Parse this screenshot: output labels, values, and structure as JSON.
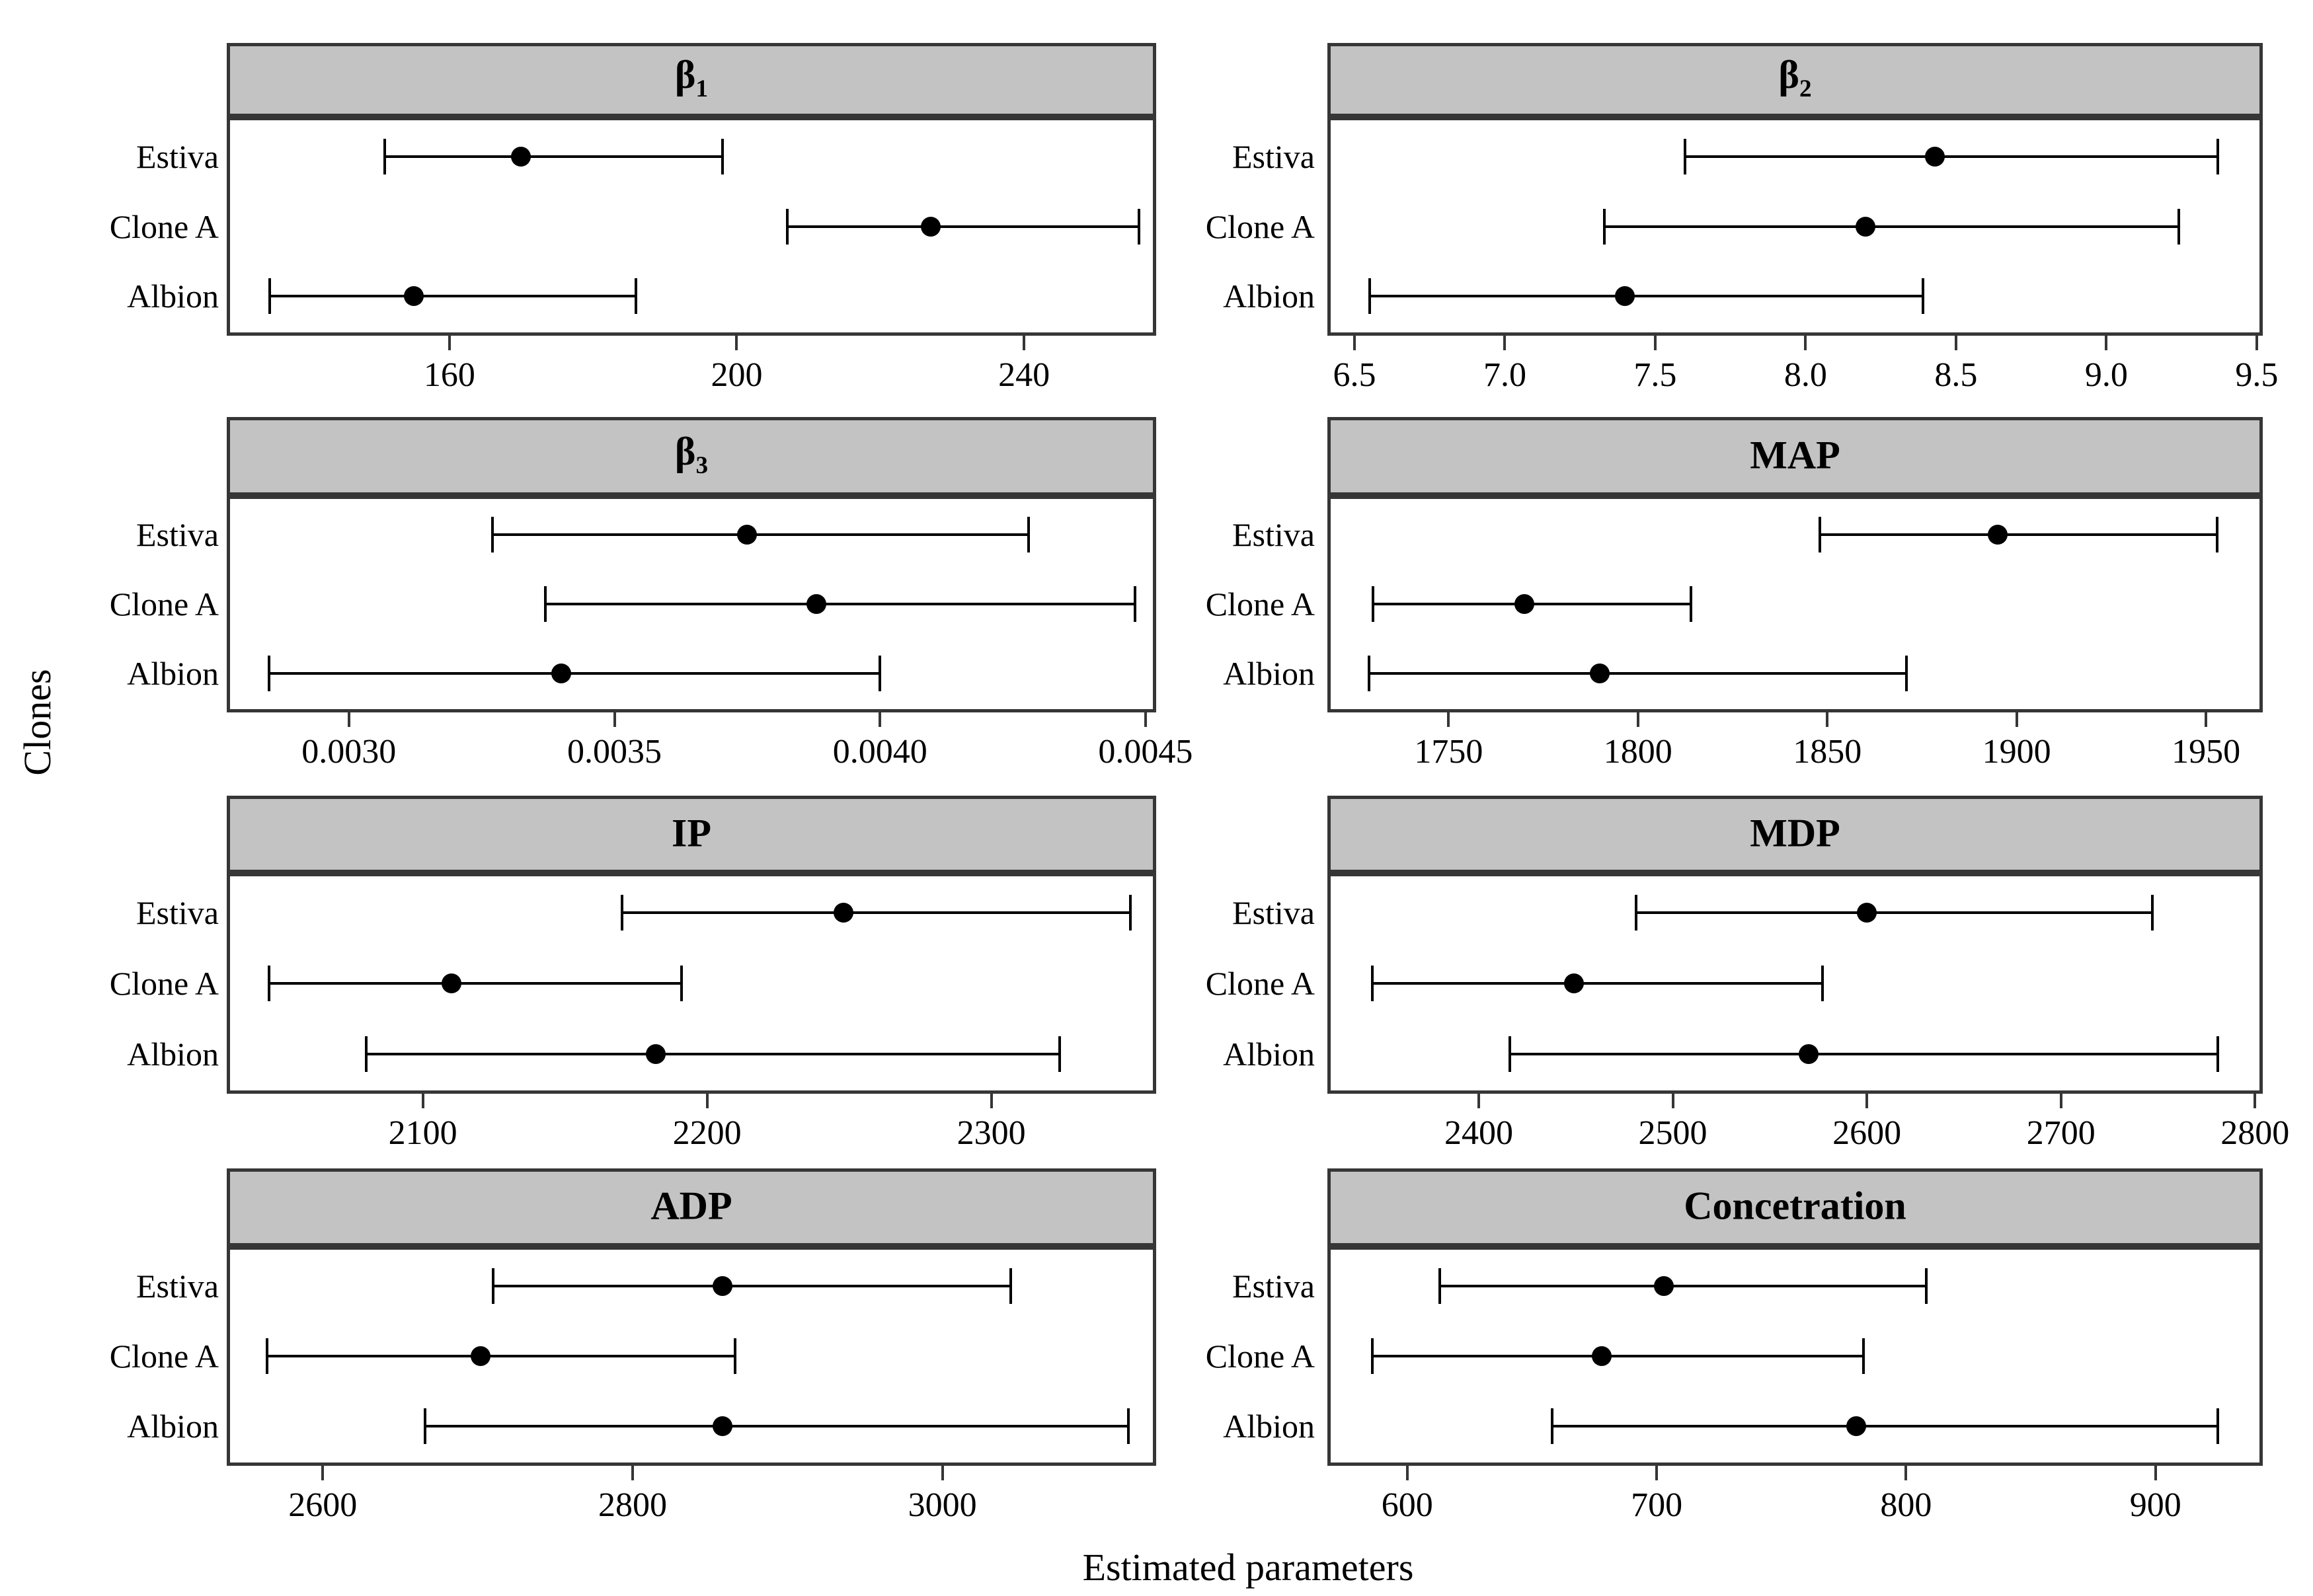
{
  "figure": {
    "ylab": "Clones",
    "xlab": "Estimated parameters"
  },
  "colors": {
    "strip_bg": "#c3c3c3",
    "border": "#363636",
    "data": "#000000",
    "background": "#ffffff",
    "text": "#000000"
  },
  "chart_data": {
    "type": "scatter",
    "subtype": "trellis-dotplot-with-error-bars",
    "layout": {
      "grid_dims": "4 rows x 2 cols",
      "grid": false,
      "legend": false,
      "strip_position": "top"
    },
    "rows_top_to_bottom": [
      "Estiva",
      "Clone A",
      "Albion"
    ],
    "panels": [
      {
        "title": "β",
        "title_sub": "1",
        "xlim": [
          129,
          258.4
        ],
        "ticks": [
          {
            "v": 160,
            "label": "160"
          },
          {
            "v": 200,
            "label": "200"
          },
          {
            "v": 240,
            "label": "240"
          }
        ],
        "series": [
          {
            "clone": "Estiva",
            "est": 170,
            "lo": 151,
            "hi": 198
          },
          {
            "clone": "Clone A",
            "est": 227,
            "lo": 207,
            "hi": 256
          },
          {
            "clone": "Albion",
            "est": 155,
            "lo": 135,
            "hi": 186
          }
        ]
      },
      {
        "title": "β",
        "title_sub": "2",
        "xlim": [
          6.41,
          9.52
        ],
        "ticks": [
          {
            "v": 6.5,
            "label": "6.5"
          },
          {
            "v": 7.0,
            "label": "7.0"
          },
          {
            "v": 7.5,
            "label": "7.5"
          },
          {
            "v": 8.0,
            "label": "8.0"
          },
          {
            "v": 8.5,
            "label": "8.5"
          },
          {
            "v": 9.0,
            "label": "9.0"
          },
          {
            "v": 9.5,
            "label": "9.5"
          }
        ],
        "series": [
          {
            "clone": "Estiva",
            "est": 8.43,
            "lo": 7.6,
            "hi": 9.37
          },
          {
            "clone": "Clone A",
            "est": 8.2,
            "lo": 7.33,
            "hi": 9.24
          },
          {
            "clone": "Albion",
            "est": 7.4,
            "lo": 6.55,
            "hi": 8.39
          }
        ]
      },
      {
        "title": "β",
        "title_sub": "3",
        "xlim": [
          0.00277,
          0.00452
        ],
        "ticks": [
          {
            "v": 0.003,
            "label": "0.0030"
          },
          {
            "v": 0.0035,
            "label": "0.0035"
          },
          {
            "v": 0.004,
            "label": "0.0040"
          },
          {
            "v": 0.0045,
            "label": "0.0045"
          }
        ],
        "series": [
          {
            "clone": "Estiva",
            "est": 0.00375,
            "lo": 0.00327,
            "hi": 0.00428
          },
          {
            "clone": "Clone A",
            "est": 0.00388,
            "lo": 0.00337,
            "hi": 0.00448
          },
          {
            "clone": "Albion",
            "est": 0.0034,
            "lo": 0.00285,
            "hi": 0.004
          }
        ]
      },
      {
        "title": "MAP",
        "title_sub": "",
        "xlim": [
          1718,
          1965
        ],
        "ticks": [
          {
            "v": 1750,
            "label": "1750"
          },
          {
            "v": 1800,
            "label": "1800"
          },
          {
            "v": 1850,
            "label": "1850"
          },
          {
            "v": 1900,
            "label": "1900"
          },
          {
            "v": 1950,
            "label": "1950"
          }
        ],
        "series": [
          {
            "clone": "Estiva",
            "est": 1895,
            "lo": 1848,
            "hi": 1953
          },
          {
            "clone": "Clone A",
            "est": 1770,
            "lo": 1730,
            "hi": 1814
          },
          {
            "clone": "Albion",
            "est": 1790,
            "lo": 1729,
            "hi": 1871
          }
        ]
      },
      {
        "title": "IP",
        "title_sub": "",
        "xlim": [
          2031,
          2358
        ],
        "ticks": [
          {
            "v": 2100,
            "label": "2100"
          },
          {
            "v": 2200,
            "label": "2200"
          },
          {
            "v": 2300,
            "label": "2300"
          }
        ],
        "series": [
          {
            "clone": "Estiva",
            "est": 2248,
            "lo": 2170,
            "hi": 2349
          },
          {
            "clone": "Clone A",
            "est": 2110,
            "lo": 2046,
            "hi": 2191
          },
          {
            "clone": "Albion",
            "est": 2182,
            "lo": 2080,
            "hi": 2324
          }
        ]
      },
      {
        "title": "MDP",
        "title_sub": "",
        "xlim": [
          2322,
          2804
        ],
        "ticks": [
          {
            "v": 2400,
            "label": "2400"
          },
          {
            "v": 2500,
            "label": "2500"
          },
          {
            "v": 2600,
            "label": "2600"
          },
          {
            "v": 2700,
            "label": "2700"
          },
          {
            "v": 2800,
            "label": "2800"
          }
        ],
        "series": [
          {
            "clone": "Estiva",
            "est": 2600,
            "lo": 2481,
            "hi": 2747
          },
          {
            "clone": "Clone A",
            "est": 2449,
            "lo": 2345,
            "hi": 2577
          },
          {
            "clone": "Albion",
            "est": 2570,
            "lo": 2416,
            "hi": 2781
          }
        ]
      },
      {
        "title": "ADP",
        "title_sub": "",
        "xlim": [
          2538,
          3138
        ],
        "ticks": [
          {
            "v": 2600,
            "label": "2600"
          },
          {
            "v": 2800,
            "label": "2800"
          },
          {
            "v": 3000,
            "label": "3000"
          }
        ],
        "series": [
          {
            "clone": "Estiva",
            "est": 2858,
            "lo": 2710,
            "hi": 3044
          },
          {
            "clone": "Clone A",
            "est": 2702,
            "lo": 2564,
            "hi": 2866
          },
          {
            "clone": "Albion",
            "est": 2858,
            "lo": 2666,
            "hi": 3120
          }
        ]
      },
      {
        "title": "Concetration",
        "title_sub": "",
        "xlim": [
          568,
          943
        ],
        "ticks": [
          {
            "v": 600,
            "label": "600"
          },
          {
            "v": 700,
            "label": "700"
          },
          {
            "v": 800,
            "label": "800"
          },
          {
            "v": 900,
            "label": "900"
          }
        ],
        "series": [
          {
            "clone": "Estiva",
            "est": 703,
            "lo": 613,
            "hi": 808
          },
          {
            "clone": "Clone A",
            "est": 678,
            "lo": 586,
            "hi": 783
          },
          {
            "clone": "Albion",
            "est": 780,
            "lo": 658,
            "hi": 925
          }
        ]
      }
    ]
  }
}
